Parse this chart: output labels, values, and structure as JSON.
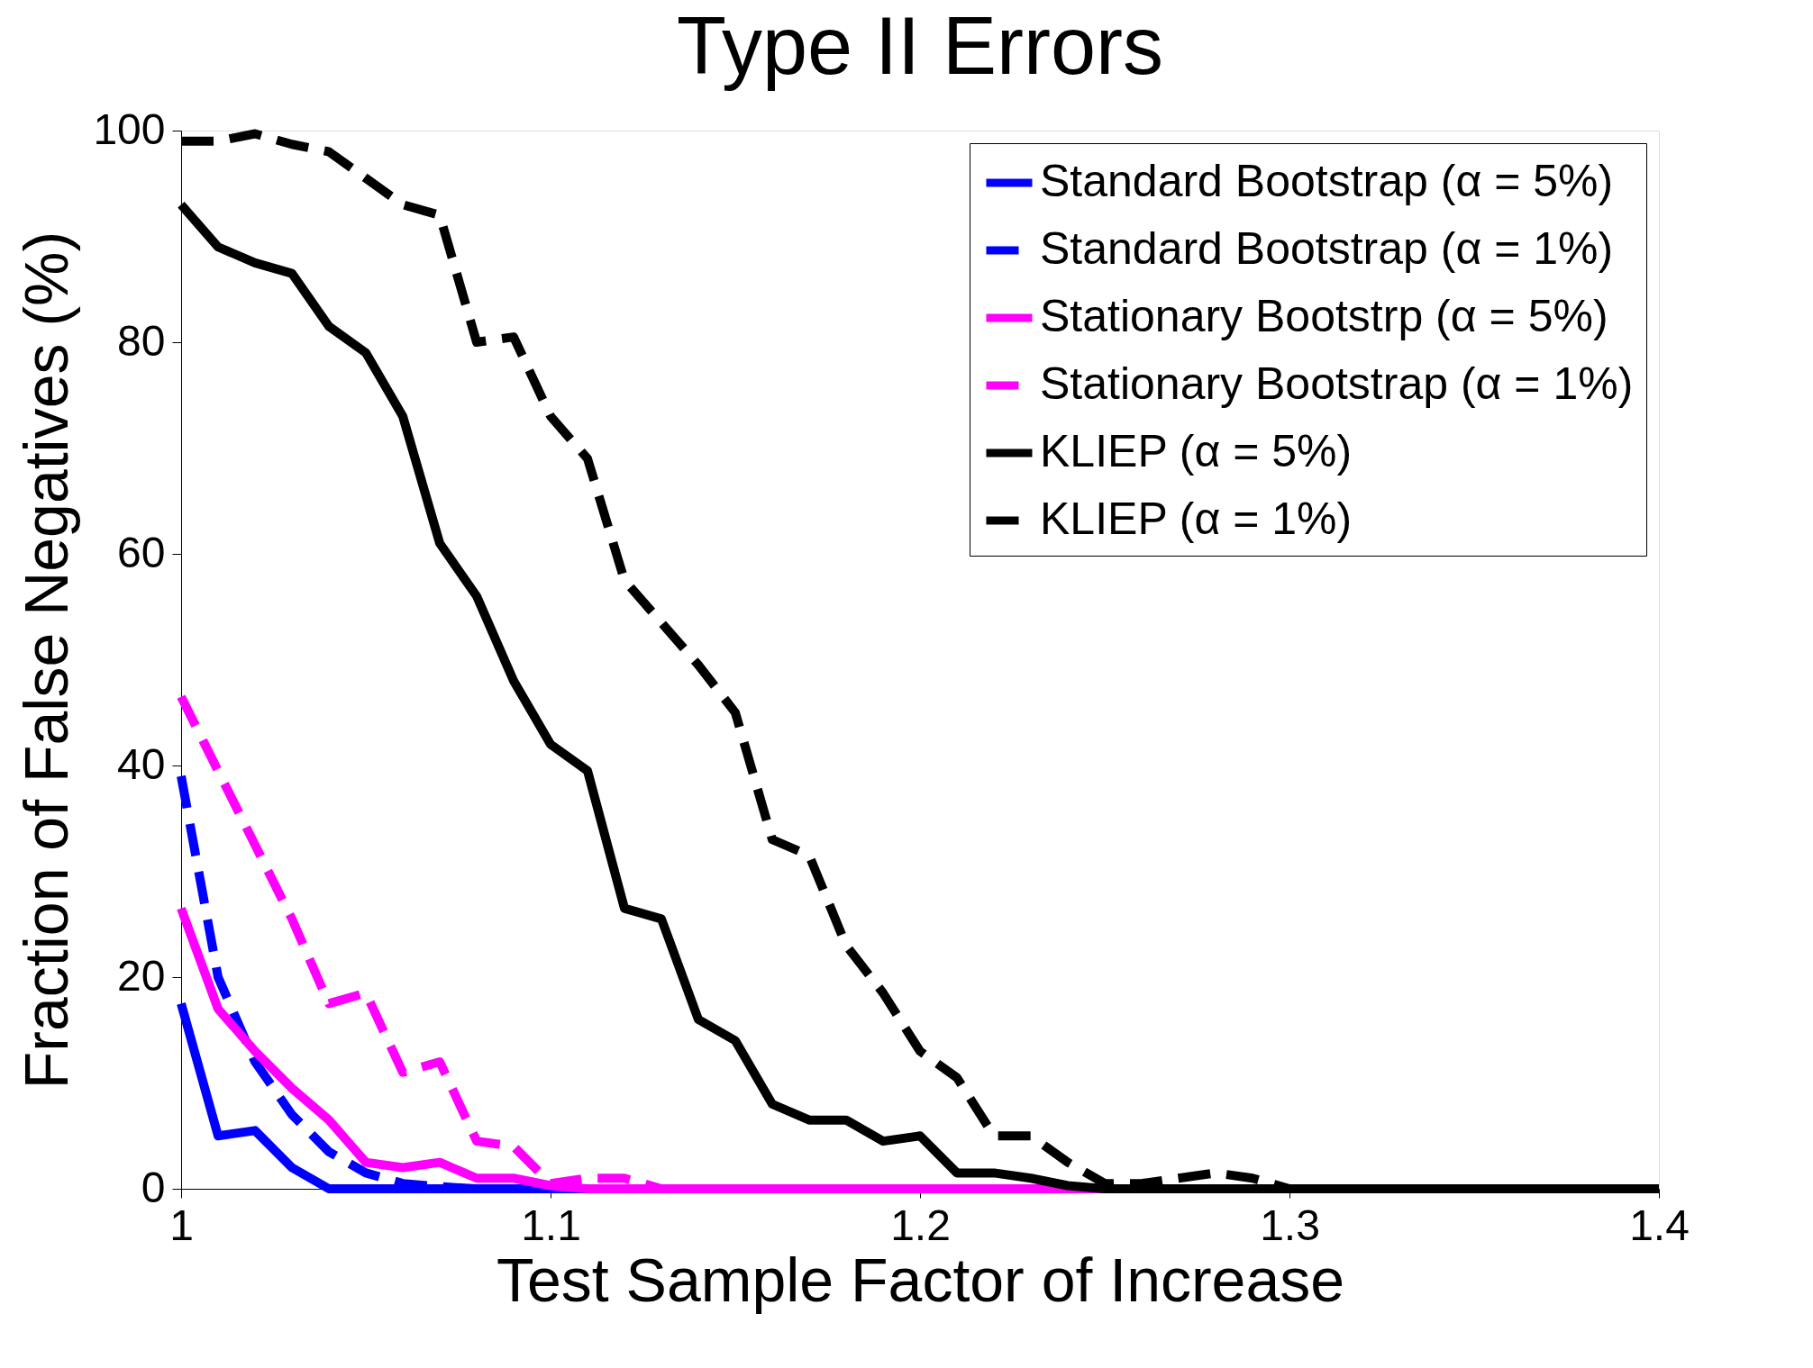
{
  "chart_data": {
    "type": "line",
    "title": "Type II Errors",
    "xlabel": "Test Sample Factor of Increase",
    "ylabel": "Fraction of False Negatives (%)",
    "x": [
      1.0,
      1.01,
      1.02,
      1.03,
      1.04,
      1.05,
      1.06,
      1.07,
      1.08,
      1.09,
      1.1,
      1.11,
      1.12,
      1.13,
      1.14,
      1.15,
      1.16,
      1.17,
      1.18,
      1.19,
      1.2,
      1.21,
      1.22,
      1.23,
      1.24,
      1.25,
      1.26,
      1.27,
      1.28,
      1.29,
      1.3,
      1.31,
      1.32,
      1.33,
      1.34,
      1.35,
      1.36,
      1.37,
      1.38,
      1.39,
      1.4
    ],
    "xlim": [
      1,
      1.4
    ],
    "xticks": [
      1,
      1.1,
      1.2,
      1.3,
      1.4
    ],
    "ylim": [
      0,
      100
    ],
    "yticks": [
      0,
      20,
      40,
      60,
      80,
      100
    ],
    "grid": false,
    "legend": "top right",
    "marker": "none",
    "series": [
      {
        "name": "Standard Bootstrap (α = 5%)",
        "color": "#0000ff",
        "line_style": "solid",
        "values": [
          17.5,
          5,
          5.5,
          2,
          0,
          0,
          0,
          0,
          0,
          0,
          0,
          0,
          null,
          null,
          null,
          null,
          null,
          null,
          null,
          null,
          null,
          null,
          null,
          null,
          null,
          null,
          null,
          null,
          null,
          null,
          null,
          null,
          null,
          null,
          null,
          null,
          null,
          null,
          null,
          null,
          null
        ]
      },
      {
        "name": "Standard Bootstrap (α = 1%)",
        "color": "#0000ff",
        "line_style": "dashed",
        "values": [
          39,
          20,
          12,
          7,
          3.5,
          1.5,
          0.5,
          0.2,
          0,
          0,
          0,
          0,
          null,
          null,
          null,
          null,
          null,
          null,
          null,
          null,
          null,
          null,
          null,
          null,
          null,
          null,
          null,
          null,
          null,
          null,
          null,
          null,
          null,
          null,
          null,
          null,
          null,
          null,
          null,
          null,
          null
        ]
      },
      {
        "name": "Stationary Bootstrp (α = 5%)",
        "color": "#ff00ff",
        "line_style": "solid",
        "values": [
          26.5,
          17,
          13,
          9.5,
          6.5,
          2.5,
          2,
          2.5,
          1,
          1,
          0.3,
          0,
          0,
          0,
          0,
          0,
          0,
          0,
          0,
          0,
          0,
          0,
          0,
          0,
          0,
          0,
          null,
          null,
          null,
          null,
          null,
          null,
          null,
          null,
          null,
          null,
          null,
          null,
          null,
          null,
          null
        ]
      },
      {
        "name": "Stationary Bootstrap (α = 1%)",
        "color": "#ff00ff",
        "line_style": "dashed",
        "values": [
          46.5,
          39.5,
          32.5,
          25.5,
          17.5,
          18.5,
          11,
          12,
          4.5,
          4,
          0.5,
          1,
          1,
          0,
          0,
          0,
          0,
          0,
          0,
          0,
          0,
          0,
          0,
          0,
          0,
          0,
          null,
          null,
          null,
          null,
          null,
          null,
          null,
          null,
          null,
          null,
          null,
          null,
          null,
          null,
          null
        ]
      },
      {
        "name": "KLIEP (α = 5%)",
        "color": "#000000",
        "line_style": "solid",
        "values": [
          93,
          89,
          87.5,
          86.5,
          81.5,
          79,
          73,
          61,
          56,
          48,
          42,
          39.5,
          26.5,
          25.5,
          16,
          14,
          8,
          6.5,
          6.5,
          4.5,
          5,
          1.5,
          1.5,
          1,
          0.3,
          0,
          0,
          0,
          0,
          0,
          0,
          0,
          0,
          0,
          0,
          0,
          0,
          0,
          0,
          0,
          0
        ]
      },
      {
        "name": "KLIEP (α = 1%)",
        "color": "#000000",
        "line_style": "dashed",
        "values": [
          99,
          99,
          99.7,
          98.7,
          98,
          95.5,
          93,
          92,
          80,
          80.5,
          73,
          69,
          57.5,
          53.5,
          49.5,
          45,
          33,
          31.5,
          23,
          18.5,
          13,
          10.5,
          5,
          5,
          2.5,
          0.5,
          0.5,
          1,
          1.5,
          1,
          0,
          0,
          0,
          0,
          0,
          0,
          0,
          0,
          0,
          0,
          0
        ]
      }
    ]
  }
}
